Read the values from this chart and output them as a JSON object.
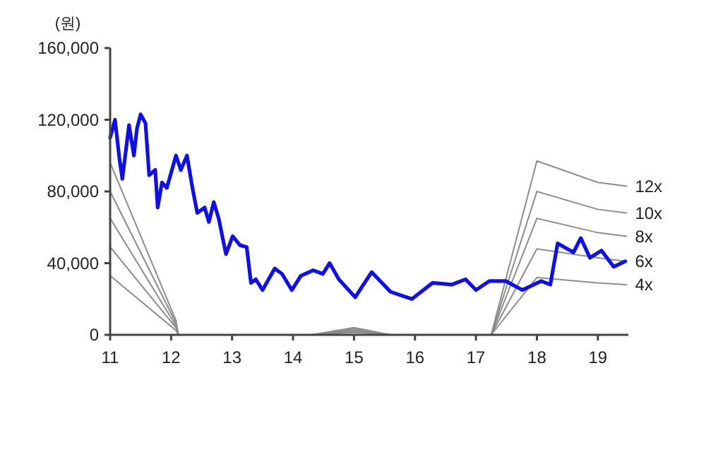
{
  "chart_data": {
    "type": "line",
    "ylabel": "(원)",
    "xlim": [
      11,
      19.5
    ],
    "xticks": [
      11,
      12,
      13,
      14,
      15,
      16,
      17,
      18,
      19
    ],
    "ylim": [
      0,
      160000
    ],
    "yticks": [
      {
        "value": 0,
        "label": "0"
      },
      {
        "value": 40000,
        "label": "40,000"
      },
      {
        "value": 80000,
        "label": "80,000"
      },
      {
        "value": 120000,
        "label": "120,000"
      },
      {
        "value": 160000,
        "label": "160,000"
      }
    ],
    "grid": false,
    "line_style": "solid",
    "marker": "none",
    "series": [
      {
        "name": "12x",
        "color": "#8c8c8c",
        "x": [
          11,
          12.08,
          12.12,
          14.3,
          15.0,
          15.6,
          17.25,
          18.0,
          19.0,
          19.47
        ],
        "values": [
          96000,
          8000,
          0,
          0,
          4000,
          0,
          0,
          97000,
          85000,
          83000
        ]
      },
      {
        "name": "10x",
        "color": "#8c8c8c",
        "x": [
          11,
          12.08,
          12.12,
          14.3,
          15.0,
          15.6,
          17.25,
          18.0,
          19.0,
          19.47
        ],
        "values": [
          80000,
          6500,
          0,
          0,
          3300,
          0,
          0,
          80000,
          70000,
          68000
        ]
      },
      {
        "name": "8x",
        "color": "#8c8c8c",
        "x": [
          11,
          12.08,
          12.12,
          14.3,
          15.0,
          15.6,
          17.25,
          18.0,
          19.0,
          19.47
        ],
        "values": [
          65000,
          5000,
          0,
          0,
          2700,
          0,
          0,
          65000,
          57000,
          55000
        ]
      },
      {
        "name": "6x",
        "color": "#8c8c8c",
        "x": [
          11,
          12.08,
          12.12,
          14.3,
          15.0,
          15.6,
          17.25,
          18.0,
          19.0,
          19.47
        ],
        "values": [
          49000,
          4000,
          0,
          0,
          2000,
          0,
          0,
          48000,
          43000,
          41000
        ]
      },
      {
        "name": "4x",
        "color": "#8c8c8c",
        "x": [
          11,
          12.08,
          12.12,
          14.3,
          15.0,
          15.6,
          17.25,
          18.0,
          19.0,
          19.47
        ],
        "values": [
          33000,
          2500,
          0,
          0,
          1300,
          0,
          0,
          32000,
          29000,
          28000
        ]
      },
      {
        "color": "#1010e0",
        "x": [
          11.0,
          11.08,
          11.15,
          11.2,
          11.31,
          11.39,
          11.44,
          11.5,
          11.58,
          11.64,
          11.74,
          11.78,
          11.85,
          11.93,
          12.08,
          12.16,
          12.26,
          12.35,
          12.43,
          12.55,
          12.62,
          12.7,
          12.78,
          12.9,
          13.01,
          13.13,
          13.24,
          13.31,
          13.39,
          13.5,
          13.7,
          13.82,
          13.98,
          14.13,
          14.33,
          14.49,
          14.6,
          14.75,
          15.02,
          15.29,
          15.6,
          15.95,
          16.29,
          16.6,
          16.83,
          17.0,
          17.22,
          17.49,
          17.76,
          18.07,
          18.22,
          18.34,
          18.6,
          18.72,
          18.87,
          19.06,
          19.26,
          19.45
        ],
        "values": [
          110000,
          120000,
          99000,
          87000,
          117000,
          100000,
          115000,
          123000,
          118000,
          89000,
          92000,
          71000,
          85000,
          82000,
          100000,
          92000,
          100000,
          82000,
          68000,
          71000,
          63000,
          74000,
          65000,
          45000,
          55000,
          50000,
          49000,
          29000,
          31000,
          25000,
          37000,
          34000,
          25000,
          33000,
          36000,
          34000,
          40000,
          31000,
          21000,
          35000,
          24000,
          20000,
          29000,
          28000,
          31000,
          25000,
          30000,
          30000,
          25000,
          30000,
          28000,
          51000,
          46000,
          54000,
          43000,
          47000,
          38000,
          41000
        ]
      }
    ]
  }
}
